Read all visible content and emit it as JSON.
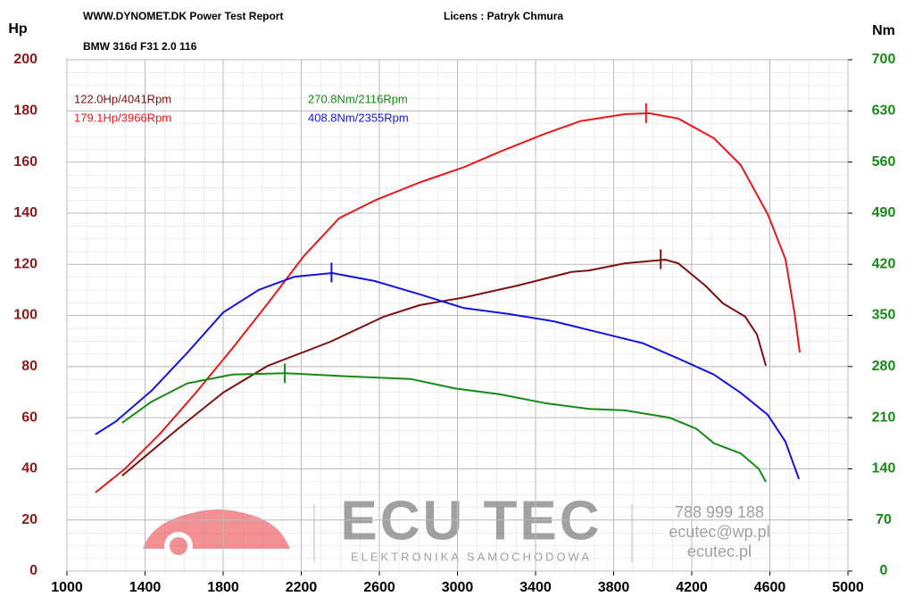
{
  "header": {
    "site": "WWW.DYNOMET.DK  Power Test Report",
    "licence": "Licens :  Patryk Chmura",
    "vehicle": "BMW 316d F31 2.0 116"
  },
  "watermark": {
    "brand": "ECU TEC",
    "tagline": "ELEKTRONIKA SAMOCHODOWA",
    "phone": "788 999 188",
    "email": "ecutec@wp.pl",
    "web": "ecutec.pl"
  },
  "chart_data": {
    "type": "line",
    "ylabel": "Hp",
    "y2label": "Nm",
    "xlim": [
      1000,
      5000
    ],
    "xticks": [
      1000,
      1400,
      1800,
      2200,
      2600,
      3000,
      3400,
      3800,
      4200,
      4600,
      5000
    ],
    "ylim": [
      0,
      200
    ],
    "yticks": [
      0,
      20,
      40,
      60,
      80,
      100,
      120,
      140,
      160,
      180,
      200
    ],
    "y2lim": [
      0,
      700
    ],
    "y2ticks": [
      0,
      70,
      140,
      210,
      280,
      350,
      420,
      490,
      560,
      630,
      700
    ],
    "grid": true,
    "series": [
      {
        "color": "#7f1010",
        "axis": "y",
        "x": [
          1283,
          1571,
          1800,
          2029,
          2349,
          2623,
          2806,
          3034,
          3309,
          3583,
          3674,
          3857,
          4063,
          4131,
          4269,
          4360,
          4474,
          4534,
          4580
        ],
        "values": [
          37.3,
          55.8,
          69.8,
          80.3,
          89.7,
          99.5,
          104,
          107,
          111.7,
          117,
          117.6,
          120.4,
          121.8,
          120.4,
          111.7,
          104.7,
          99.5,
          92.5,
          80.3
        ],
        "peak": {
          "label": "122.0Hp/4041Rpm",
          "x": 4041,
          "value": 122.0
        }
      },
      {
        "color": "#e81818",
        "axis": "y",
        "x": [
          1146,
          1297,
          1480,
          1663,
          1846,
          2029,
          2211,
          2394,
          2577,
          2806,
          3034,
          3217,
          3446,
          3629,
          3857,
          3981,
          4131,
          4314,
          4451,
          4589,
          4680,
          4726,
          4753
        ],
        "values": [
          30.7,
          40,
          54,
          70,
          87,
          104.7,
          123,
          138,
          145,
          152,
          158,
          164,
          171,
          176,
          178.7,
          179.1,
          177,
          169.3,
          158.8,
          139.6,
          122,
          101,
          85.5
        ],
        "peak": {
          "label": "179.1Hp/3966Rpm",
          "x": 3966,
          "value": 179.1
        }
      },
      {
        "color": "#168a16",
        "axis": "y2",
        "x": [
          1283,
          1434,
          1617,
          1846,
          2120,
          2486,
          2760,
          2989,
          3217,
          3446,
          3674,
          3857,
          4086,
          4223,
          4314,
          4451,
          4543,
          4580
        ],
        "values": [
          203,
          232,
          257,
          269,
          271,
          266,
          263,
          250,
          242,
          230,
          222,
          220,
          210,
          195,
          175,
          161,
          140,
          122
        ],
        "peak": {
          "label": "270.8Nm/2116Rpm",
          "x": 2116,
          "value": 270.8
        }
      },
      {
        "color": "#1414e0",
        "axis": "y2",
        "x": [
          1146,
          1251,
          1434,
          1617,
          1800,
          1983,
          2166,
          2358,
          2577,
          2806,
          3034,
          3263,
          3491,
          3720,
          3949,
          4131,
          4314,
          4451,
          4589,
          4680,
          4749
        ],
        "values": [
          187,
          205,
          247,
          299,
          354,
          385,
          403,
          408,
          397,
          379,
          360,
          352,
          342,
          327,
          312,
          291,
          269,
          244,
          214,
          177,
          126
        ],
        "peak": {
          "label": "408.8Nm/2355Rpm",
          "x": 2355,
          "value": 408.8
        }
      }
    ]
  }
}
